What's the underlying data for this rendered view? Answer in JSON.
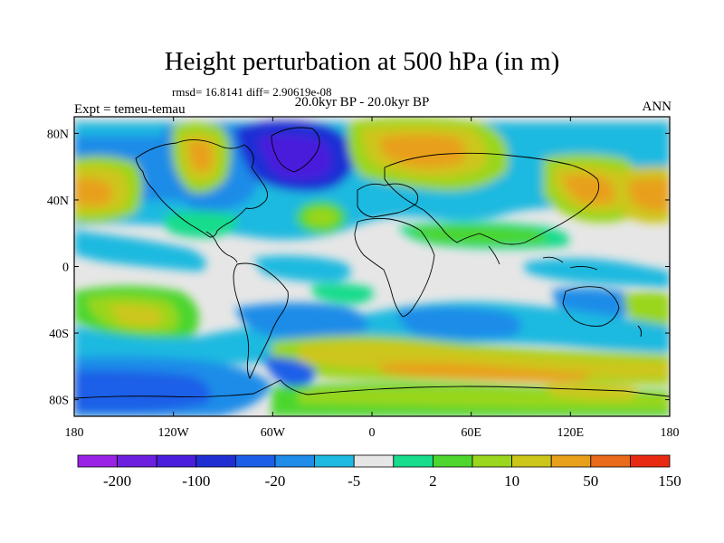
{
  "title": "Height perturbation at 500 hPa (in m)",
  "stats": "rmsd= 16.8141  diff= 2.90619e-08",
  "period": "20.0kyr BP - 20.0kyr BP",
  "experiment": "Expt = temeu-temau",
  "season": "ANN",
  "x_ticks": [
    "180",
    "120W",
    "60W",
    "0",
    "60E",
    "120E",
    "180"
  ],
  "y_ticks": [
    "80N",
    "40N",
    "0",
    "40S",
    "80S"
  ],
  "colorbar": {
    "colors": [
      "#9a22e6",
      "#6d1fe0",
      "#4a1edc",
      "#1f2fd4",
      "#1d5ee8",
      "#1e8ce8",
      "#1eb9e0",
      "#e6e6e6",
      "#17dc8c",
      "#4cd62e",
      "#9ad61e",
      "#cdc61a",
      "#e8a01a",
      "#e86a1a",
      "#e82a12"
    ],
    "labels": [
      "-200",
      "-100",
      "-20",
      "-5",
      "2",
      "10",
      "50",
      "150"
    ]
  }
}
